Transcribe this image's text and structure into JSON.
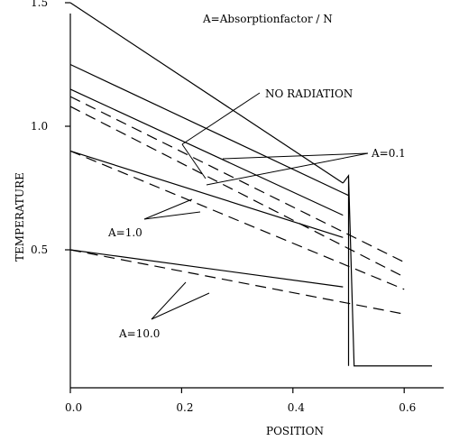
{
  "chart_data": {
    "type": "line",
    "title": "A=Absorptionfactor / N",
    "xlabel": "POSITION",
    "ylabel": "TEMPERATURE",
    "xlim": [
      0,
      0.65
    ],
    "ylim": [
      0,
      1.55
    ],
    "x_ticks": [
      {
        "value": 0.0,
        "label": "0.0"
      },
      {
        "value": 0.2,
        "label": "0.2"
      },
      {
        "value": 0.4,
        "label": "0.4"
      },
      {
        "value": 0.6,
        "label": "0.6"
      }
    ],
    "y_ticks": [
      {
        "value": 0.5,
        "label": "0.5"
      },
      {
        "value": 1.0,
        "label": "1.0"
      },
      {
        "value": 1.5,
        "label": "1.5"
      }
    ],
    "grid": false,
    "series": [
      {
        "style": "solid",
        "x": [
          0.0,
          0.49
        ],
        "y": [
          1.5,
          0.77
        ]
      },
      {
        "style": "solid",
        "x": [
          0.0,
          0.5
        ],
        "y": [
          1.25,
          0.72
        ]
      },
      {
        "style": "solid",
        "x": [
          0.0,
          0.49
        ],
        "y": [
          1.15,
          0.64
        ]
      },
      {
        "style": "solid",
        "x": [
          0.0,
          0.49
        ],
        "y": [
          0.9,
          0.55
        ]
      },
      {
        "style": "solid",
        "x": [
          0.0,
          0.49
        ],
        "y": [
          0.5,
          0.35
        ]
      },
      {
        "style": "dashed",
        "x": [
          0.0,
          0.6
        ],
        "y": [
          1.12,
          0.45
        ]
      },
      {
        "style": "dashed",
        "x": [
          0.0,
          0.6
        ],
        "y": [
          1.08,
          0.39
        ]
      },
      {
        "style": "dashed",
        "x": [
          0.0,
          0.6
        ],
        "y": [
          0.9,
          0.34
        ]
      },
      {
        "style": "dashed",
        "x": [
          0.0,
          0.6
        ],
        "y": [
          0.5,
          0.24
        ]
      }
    ],
    "drop": {
      "x": [
        0.49,
        0.5,
        0.5,
        0.5,
        0.51,
        0.65
      ],
      "y": [
        0.77,
        0.8,
        0.03,
        0.8,
        0.03,
        0.03
      ]
    },
    "annotations": [
      {
        "id": "no-radiation",
        "text": "NO RADIATION"
      },
      {
        "id": "a-0-1",
        "text": "A=0.1"
      },
      {
        "id": "a-1-0",
        "text": "A=1.0"
      },
      {
        "id": "a-10-0",
        "text": "A=10.0"
      }
    ]
  }
}
